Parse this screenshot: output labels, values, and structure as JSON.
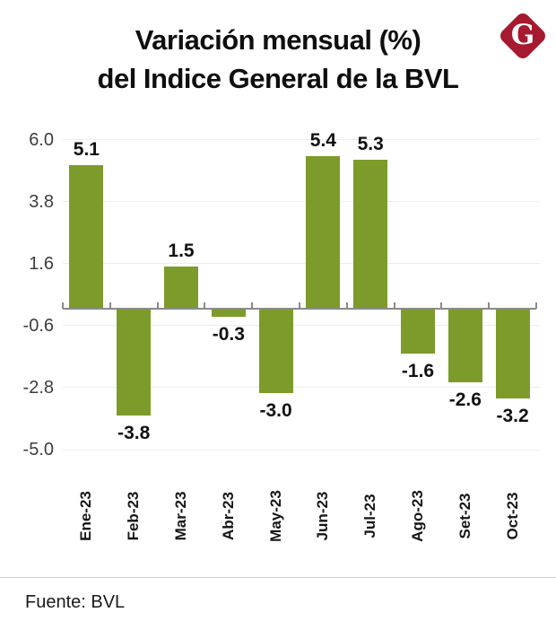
{
  "header": {
    "title_line1": "Variación mensual (%)",
    "title_line2": "del Indice General de la BVL",
    "logo_letter": "G",
    "logo_color": "#a6192e"
  },
  "chart_data": {
    "type": "bar",
    "title": "Variación mensual (%) del Indice General de la BVL",
    "xlabel": "",
    "ylabel": "",
    "categories": [
      "Ene-23",
      "Feb-23",
      "Mar-23",
      "Abr-23",
      "May-23",
      "Jun-23",
      "Jul-23",
      "Ago-23",
      "Set-23",
      "Oct-23"
    ],
    "values": [
      5.1,
      -3.8,
      1.5,
      -0.3,
      -3.0,
      5.4,
      5.3,
      -1.6,
      -2.6,
      -3.2
    ],
    "value_labels": [
      "5.1",
      "-3.8",
      "1.5",
      "-0.3",
      "-3.0",
      "5.4",
      "5.3",
      "-1.6",
      "-2.6",
      "-3.2"
    ],
    "y_ticks": [
      6.0,
      3.8,
      1.6,
      -0.6,
      -2.8,
      -5.0
    ],
    "y_tick_labels": [
      "6.0",
      "3.8",
      "1.6",
      "-0.6",
      "-2.8",
      "-5.0"
    ],
    "ylim": [
      -5.8,
      6.6
    ],
    "grid": true,
    "legend": false,
    "bar_color": "#7d9b2a"
  },
  "footer": {
    "source": "Fuente: BVL"
  }
}
